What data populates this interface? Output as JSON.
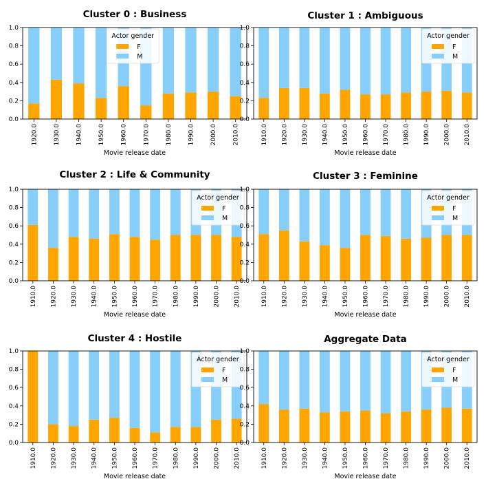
{
  "colors": {
    "F": "#ffa500",
    "M": "#87cefa",
    "frame": "#000000"
  },
  "chart_data": [
    {
      "type": "bar",
      "stacked": true,
      "title": "Cluster 0 : Business",
      "xlabel": "Movie release date",
      "ylabel": "",
      "ylim": [
        0,
        1.0
      ],
      "yticks": [
        "0.0",
        "0.2",
        "0.4",
        "0.6",
        "0.8",
        "1.0"
      ],
      "legend": {
        "title": "Actor gender",
        "entries": [
          "F",
          "M"
        ],
        "placement": "top-center"
      },
      "categories": [
        "1920.0",
        "1930.0",
        "1940.0",
        "1950.0",
        "1960.0",
        "1970.0",
        "1980.0",
        "1990.0",
        "2000.0",
        "2010.0"
      ],
      "series": [
        {
          "name": "F",
          "values": [
            0.17,
            0.43,
            0.39,
            0.23,
            0.36,
            0.15,
            0.28,
            0.29,
            0.3,
            0.25
          ]
        },
        {
          "name": "M",
          "values": [
            0.83,
            0.57,
            0.61,
            0.77,
            0.64,
            0.85,
            0.72,
            0.71,
            0.7,
            0.75
          ]
        }
      ]
    },
    {
      "type": "bar",
      "stacked": true,
      "title": "Cluster 1 : Ambiguous",
      "xlabel": "Movie release date",
      "ylabel": "",
      "ylim": [
        0,
        1.0
      ],
      "yticks": [
        "0.0",
        "0.2",
        "0.4",
        "0.6",
        "0.8",
        "1.0"
      ],
      "legend": {
        "title": "Actor gender",
        "entries": [
          "F",
          "M"
        ],
        "placement": "top-right"
      },
      "categories": [
        "1910.0",
        "1920.0",
        "1930.0",
        "1940.0",
        "1950.0",
        "1960.0",
        "1970.0",
        "1980.0",
        "1990.0",
        "2000.0",
        "2010.0"
      ],
      "series": [
        {
          "name": "F",
          "values": [
            0.23,
            0.34,
            0.34,
            0.28,
            0.32,
            0.27,
            0.27,
            0.29,
            0.3,
            0.31,
            0.29
          ]
        },
        {
          "name": "M",
          "values": [
            0.77,
            0.66,
            0.66,
            0.72,
            0.68,
            0.73,
            0.73,
            0.71,
            0.7,
            0.69,
            0.71
          ]
        }
      ]
    },
    {
      "type": "bar",
      "stacked": true,
      "title": "Cluster 2 : Life & Community",
      "xlabel": "Movie release date",
      "ylabel": "",
      "ylim": [
        0,
        1.0
      ],
      "yticks": [
        "0.0",
        "0.2",
        "0.4",
        "0.6",
        "0.8",
        "1.0"
      ],
      "legend": {
        "title": "Actor gender",
        "entries": [
          "F",
          "M"
        ],
        "placement": "top-right"
      },
      "categories": [
        "1910.0",
        "1920.0",
        "1930.0",
        "1940.0",
        "1950.0",
        "1960.0",
        "1970.0",
        "1980.0",
        "1990.0",
        "2000.0",
        "2010.0"
      ],
      "series": [
        {
          "name": "F",
          "values": [
            0.61,
            0.36,
            0.48,
            0.46,
            0.51,
            0.48,
            0.45,
            0.5,
            0.5,
            0.5,
            0.48
          ]
        },
        {
          "name": "M",
          "values": [
            0.39,
            0.64,
            0.52,
            0.54,
            0.49,
            0.52,
            0.55,
            0.5,
            0.5,
            0.5,
            0.52
          ]
        }
      ]
    },
    {
      "type": "bar",
      "stacked": true,
      "title": "Cluster 3 : Feminine",
      "xlabel": "Movie release date",
      "ylabel": "",
      "ylim": [
        0,
        1.0
      ],
      "yticks": [
        "0.0",
        "0.2",
        "0.4",
        "0.6",
        "0.8",
        "1.0"
      ],
      "legend": {
        "title": "Actor gender",
        "entries": [
          "F",
          "M"
        ],
        "placement": "top-right"
      },
      "categories": [
        "1910.0",
        "1920.0",
        "1930.0",
        "1940.0",
        "1950.0",
        "1960.0",
        "1970.0",
        "1980.0",
        "1990.0",
        "2000.0",
        "2010.0"
      ],
      "series": [
        {
          "name": "F",
          "values": [
            0.51,
            0.55,
            0.43,
            0.39,
            0.36,
            0.5,
            0.49,
            0.46,
            0.47,
            0.5,
            0.5
          ]
        },
        {
          "name": "M",
          "values": [
            0.49,
            0.45,
            0.57,
            0.61,
            0.64,
            0.5,
            0.51,
            0.54,
            0.53,
            0.5,
            0.5
          ]
        }
      ]
    },
    {
      "type": "bar",
      "stacked": true,
      "title": "Cluster 4 : Hostile",
      "xlabel": "Movie release date",
      "ylabel": "",
      "ylim": [
        0,
        1.0
      ],
      "yticks": [
        "0.0",
        "0.2",
        "0.4",
        "0.6",
        "0.8",
        "1.0"
      ],
      "legend": {
        "title": "Actor gender",
        "entries": [
          "F",
          "M"
        ],
        "placement": "top-right"
      },
      "categories": [
        "1910.0",
        "1920.0",
        "1930.0",
        "1940.0",
        "1950.0",
        "1960.0",
        "1970.0",
        "1980.0",
        "1990.0",
        "2000.0",
        "2010.0"
      ],
      "series": [
        {
          "name": "F",
          "values": [
            1.0,
            0.2,
            0.18,
            0.25,
            0.27,
            0.16,
            0.11,
            0.17,
            0.17,
            0.25,
            0.26
          ]
        },
        {
          "name": "M",
          "values": [
            0.0,
            0.8,
            0.82,
            0.75,
            0.73,
            0.84,
            0.89,
            0.83,
            0.83,
            0.75,
            0.74
          ]
        }
      ]
    },
    {
      "type": "bar",
      "stacked": true,
      "title": "Aggregate Data",
      "xlabel": "Movie release date",
      "ylabel": "",
      "ylim": [
        0,
        1.0
      ],
      "yticks": [
        "0.0",
        "0.2",
        "0.4",
        "0.6",
        "0.8",
        "1.0"
      ],
      "legend": {
        "title": "Actor gender",
        "entries": [
          "F",
          "M"
        ],
        "placement": "top-right"
      },
      "categories": [
        "1910.0",
        "1920.0",
        "1930.0",
        "1940.0",
        "1950.0",
        "1960.0",
        "1970.0",
        "1980.0",
        "1990.0",
        "2000.0",
        "2010.0"
      ],
      "series": [
        {
          "name": "F",
          "values": [
            0.42,
            0.36,
            0.37,
            0.33,
            0.34,
            0.35,
            0.32,
            0.34,
            0.36,
            0.38,
            0.37
          ]
        },
        {
          "name": "M",
          "values": [
            0.58,
            0.64,
            0.63,
            0.67,
            0.66,
            0.65,
            0.68,
            0.66,
            0.64,
            0.62,
            0.63
          ]
        }
      ]
    }
  ]
}
